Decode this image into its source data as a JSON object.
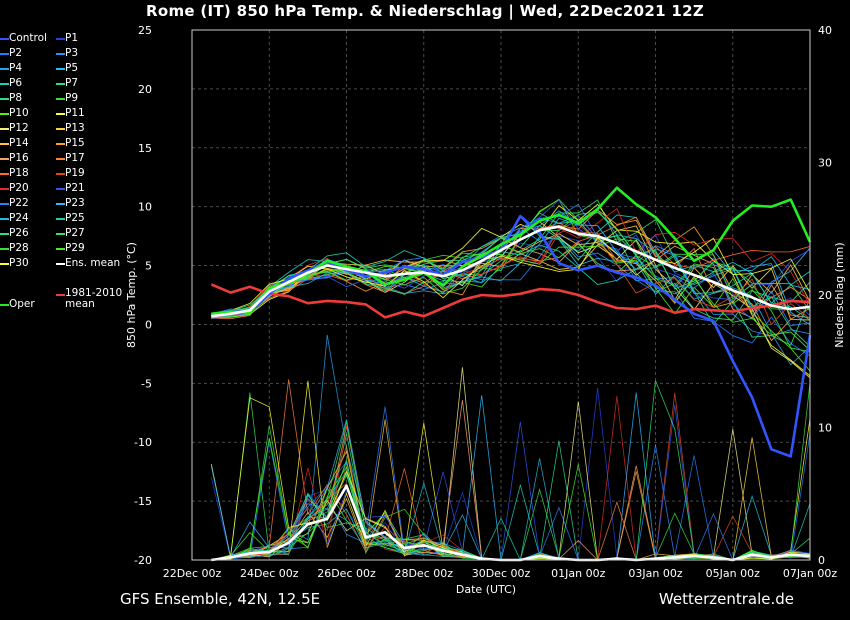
{
  "header": {
    "title": "Rome  (IT)  850 hPa Temp. & Niederschlag | Wed, 22Dec2021 12Z"
  },
  "footer": {
    "left": "GFS Ensemble, 42N, 12.5E",
    "right": "Wetterzentrale.de"
  },
  "colors": {
    "background": "#000000",
    "ens_mean": "#ffffff",
    "climate_mean": "#ee3b3b",
    "oper": "#22ee22",
    "grid": "#555555"
  },
  "legend": [
    {
      "label": "Control",
      "color": "#3355ff"
    },
    {
      "label": "P1",
      "color": "#2244dd"
    },
    {
      "label": "P2",
      "color": "#1f7fff"
    },
    {
      "label": "P3",
      "color": "#2a8fff"
    },
    {
      "label": "P4",
      "color": "#22a4e8"
    },
    {
      "label": "P5",
      "color": "#22c0f0"
    },
    {
      "label": "P6",
      "color": "#18d0c0"
    },
    {
      "label": "P7",
      "color": "#22e090"
    },
    {
      "label": "P8",
      "color": "#30e070"
    },
    {
      "label": "P9",
      "color": "#3ade3a"
    },
    {
      "label": "P10",
      "color": "#55ee10"
    },
    {
      "label": "P11",
      "color": "#ffff30"
    },
    {
      "label": "P12",
      "color": "#f0ee80"
    },
    {
      "label": "P13",
      "color": "#ffd040"
    },
    {
      "label": "P14",
      "color": "#ffc040"
    },
    {
      "label": "P15",
      "color": "#ffa020"
    },
    {
      "label": "P16",
      "color": "#f5a070"
    },
    {
      "label": "P17",
      "color": "#ff8040"
    },
    {
      "label": "P18",
      "color": "#ff6830"
    },
    {
      "label": "P19",
      "color": "#e04818"
    },
    {
      "label": "P20",
      "color": "#dd2a2a"
    },
    {
      "label": "P21",
      "color": "#3355ee"
    },
    {
      "label": "P22",
      "color": "#2a80ff"
    },
    {
      "label": "P23",
      "color": "#2ab8ff"
    },
    {
      "label": "P24",
      "color": "#22b8d8"
    },
    {
      "label": "P25",
      "color": "#18d0b0"
    },
    {
      "label": "P26",
      "color": "#28e088"
    },
    {
      "label": "P27",
      "color": "#34e060"
    },
    {
      "label": "P28",
      "color": "#3ade40"
    },
    {
      "label": "P29",
      "color": "#44ee22"
    },
    {
      "label": "P30",
      "color": "#ffff30"
    },
    {
      "label": "Ens. mean",
      "color": "#ffffff"
    },
    {
      "label": "Oper",
      "color": "#22ee22"
    },
    {
      "label": "1981-2010 mean",
      "color": "#ee3b3b"
    }
  ],
  "chart_data": {
    "type": "line",
    "title": "Rome  (IT)  850 hPa Temp. & Niederschlag | Wed, 22Dec2021 12Z",
    "xlabel": "Date (UTC)",
    "ylabel": "850 hPa Temp. (°C)",
    "y2label": "Niederschlag (mm)",
    "ylim": [
      -20,
      25
    ],
    "y2lim": [
      0,
      40
    ],
    "yticks": [
      "25",
      "20",
      "15",
      "10",
      "5",
      "0",
      "-5",
      "-10",
      "-15",
      "-20"
    ],
    "y2ticks": [
      "40",
      "30",
      "20",
      "10",
      "0"
    ],
    "y2tick_values": [
      40,
      30,
      20,
      10,
      0
    ],
    "xticks": [
      "22Dec 00z",
      "24Dec 00z",
      "26Dec 00z",
      "28Dec 00z",
      "30Dec 00z",
      "01Jan 00z",
      "03Jan 00z",
      "05Jan 00z",
      "07Jan 00z"
    ],
    "x_hours_from_22Dec_00z_note": "x values below are forecast hours counted from 22Dec 00z",
    "grid": true,
    "series": [
      {
        "name": "Ens. mean",
        "axis": "temp",
        "color": "#ffffff",
        "x": [
          12,
          24,
          36,
          48,
          60,
          72,
          84,
          96,
          108,
          120,
          132,
          144,
          156,
          168,
          180,
          192,
          204,
          216,
          228,
          240,
          252,
          264,
          276,
          288,
          300,
          312,
          324,
          336,
          348,
          360,
          372,
          384
        ],
        "values": [
          0.7,
          0.9,
          1.2,
          2.8,
          3.6,
          4.4,
          5.0,
          4.7,
          4.4,
          4.1,
          4.3,
          4.4,
          4.1,
          4.6,
          5.4,
          6.3,
          7.2,
          8.0,
          8.3,
          7.7,
          7.5,
          6.9,
          6.2,
          5.5,
          4.8,
          4.2,
          3.6,
          2.9,
          2.3,
          1.6,
          1.3,
          1.5
        ]
      },
      {
        "name": "1981-2010 mean",
        "axis": "temp",
        "color": "#ee3b3b",
        "x": [
          12,
          24,
          36,
          48,
          60,
          72,
          84,
          96,
          108,
          120,
          132,
          144,
          156,
          168,
          180,
          192,
          204,
          216,
          228,
          240,
          252,
          264,
          276,
          288,
          300,
          312,
          324,
          336,
          348,
          360,
          372,
          384
        ],
        "values": [
          3.4,
          2.7,
          3.2,
          2.6,
          2.4,
          1.8,
          2.0,
          1.9,
          1.7,
          0.6,
          1.1,
          0.7,
          1.4,
          2.1,
          2.5,
          2.4,
          2.6,
          3.0,
          2.9,
          2.5,
          1.9,
          1.4,
          1.3,
          1.6,
          1.0,
          1.3,
          1.2,
          1.1,
          1.4,
          1.6,
          2.0,
          1.9
        ]
      },
      {
        "name": "Oper",
        "axis": "temp",
        "color": "#22ee22",
        "x": [
          12,
          24,
          36,
          48,
          60,
          72,
          84,
          96,
          108,
          120,
          132,
          144,
          156,
          168,
          180,
          192,
          204,
          216,
          228,
          240,
          252,
          264,
          276,
          288,
          300,
          312,
          324,
          336,
          348,
          360,
          372,
          384
        ],
        "values": [
          0.9,
          1.1,
          1.0,
          3.1,
          3.5,
          4.3,
          5.4,
          4.9,
          4.5,
          3.4,
          3.8,
          4.4,
          3.3,
          4.9,
          5.8,
          6.8,
          7.6,
          8.8,
          9.3,
          8.6,
          9.8,
          11.6,
          10.2,
          9.1,
          7.3,
          5.4,
          6.3,
          8.8,
          10.1,
          10.0,
          10.6,
          7.0
        ]
      },
      {
        "name": "Control",
        "axis": "temp",
        "color": "#3355ff",
        "x": [
          12,
          24,
          36,
          48,
          60,
          72,
          84,
          96,
          108,
          120,
          132,
          144,
          156,
          168,
          180,
          192,
          204,
          216,
          228,
          240,
          252,
          264,
          276,
          288,
          300,
          312,
          324,
          336,
          348,
          360,
          372,
          384
        ],
        "values": [
          0.8,
          1.2,
          1.0,
          2.6,
          3.9,
          4.6,
          5.3,
          4.6,
          4.1,
          4.4,
          4.9,
          4.7,
          4.2,
          5.3,
          5.7,
          6.3,
          9.2,
          7.8,
          5.2,
          4.6,
          5.0,
          4.4,
          4.0,
          3.3,
          2.1,
          0.9,
          0.3,
          -3.1,
          -6.2,
          -10.6,
          -11.2,
          -0.9
        ]
      },
      {
        "name": "Ens. mean precipitation",
        "axis": "precip",
        "color": "#ffffff",
        "x": [
          12,
          24,
          36,
          48,
          60,
          72,
          84,
          96,
          108,
          120,
          132,
          144,
          156,
          168,
          180,
          192,
          204,
          216,
          228,
          240,
          252,
          264,
          276,
          288,
          300,
          312,
          324,
          336,
          348,
          360,
          372,
          384
        ],
        "values": [
          0.0,
          0.2,
          0.5,
          0.6,
          1.3,
          2.7,
          3.1,
          5.6,
          1.7,
          2.1,
          0.9,
          1.1,
          0.7,
          0.4,
          0.1,
          0.0,
          0.0,
          0.3,
          0.1,
          0.0,
          0.0,
          0.1,
          0.0,
          0.1,
          0.2,
          0.3,
          0.2,
          0.0,
          0.4,
          0.2,
          0.4,
          0.3
        ]
      }
    ]
  }
}
